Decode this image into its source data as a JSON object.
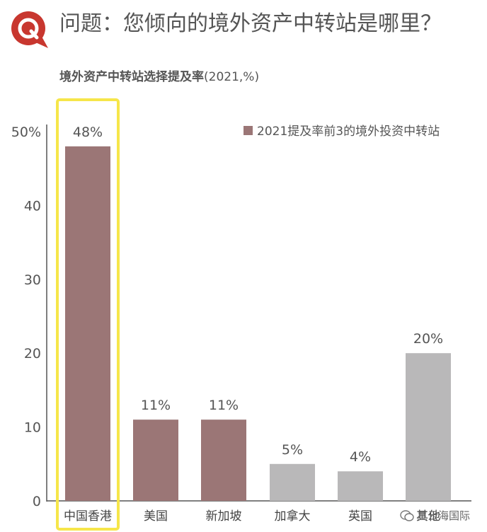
{
  "header": {
    "question": "问题：您倾向的境外资产中转站是哪里？"
  },
  "subtitle": {
    "bold": "境外资产中转站选择提及率",
    "rest": "(2021,%)"
  },
  "colors": {
    "brand_red": "#c8372f",
    "highlight_bar": "#9b7676",
    "other_bar": "#b9b8b9",
    "highlight_frame": "#f6e64a"
  },
  "chart_data": {
    "type": "bar",
    "categories": [
      "中国香港",
      "美国",
      "新加坡",
      "加拿大",
      "英国",
      "其他"
    ],
    "values": [
      48,
      11,
      11,
      5,
      4,
      20
    ],
    "value_labels": [
      "48%",
      "11%",
      "11%",
      "5%",
      "4%",
      "20%"
    ],
    "highlighted": [
      true,
      true,
      true,
      false,
      false,
      false
    ],
    "y_ticks": [
      "0",
      "10",
      "20",
      "30",
      "40",
      "50%"
    ],
    "y_tick_values": [
      0,
      10,
      20,
      30,
      40,
      50
    ],
    "ylim": [
      0,
      50
    ],
    "legend": "2021提及率前3的境外投资中转站",
    "legend_position": "top-right",
    "boxed_category": "中国香港"
  },
  "watermark": {
    "text": "星云海国际",
    "icon": "wechat-icon"
  }
}
